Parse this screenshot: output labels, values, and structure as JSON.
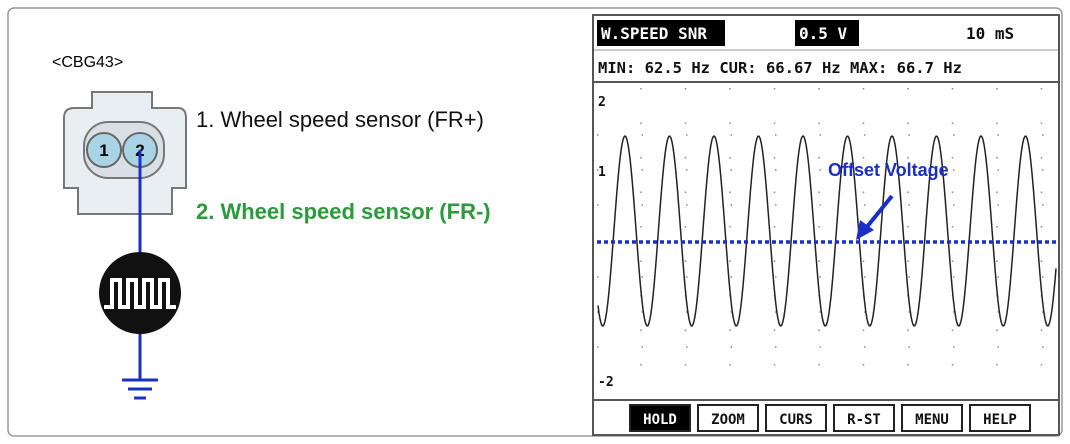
{
  "connector": {
    "label": "<CBG43>",
    "pins": [
      "1",
      "2"
    ]
  },
  "pin_descriptions": [
    "1. Wheel speed sensor (FR+)",
    "2. Wheel speed sensor (FR-)"
  ],
  "scope": {
    "channel": "W.SPEED SNR",
    "volts_per_div": "0.5 V",
    "time_per_div": "10 mS",
    "readout": "MIN: 62.5 Hz CUR: 66.67 Hz MAX: 66.7 Hz",
    "y_labels": [
      "2",
      "1",
      "-2"
    ],
    "annotation": "Offset Voltage",
    "buttons": [
      "HOLD",
      "ZOOM",
      "CURS",
      "R-ST",
      "MENU",
      "HELP"
    ]
  }
}
